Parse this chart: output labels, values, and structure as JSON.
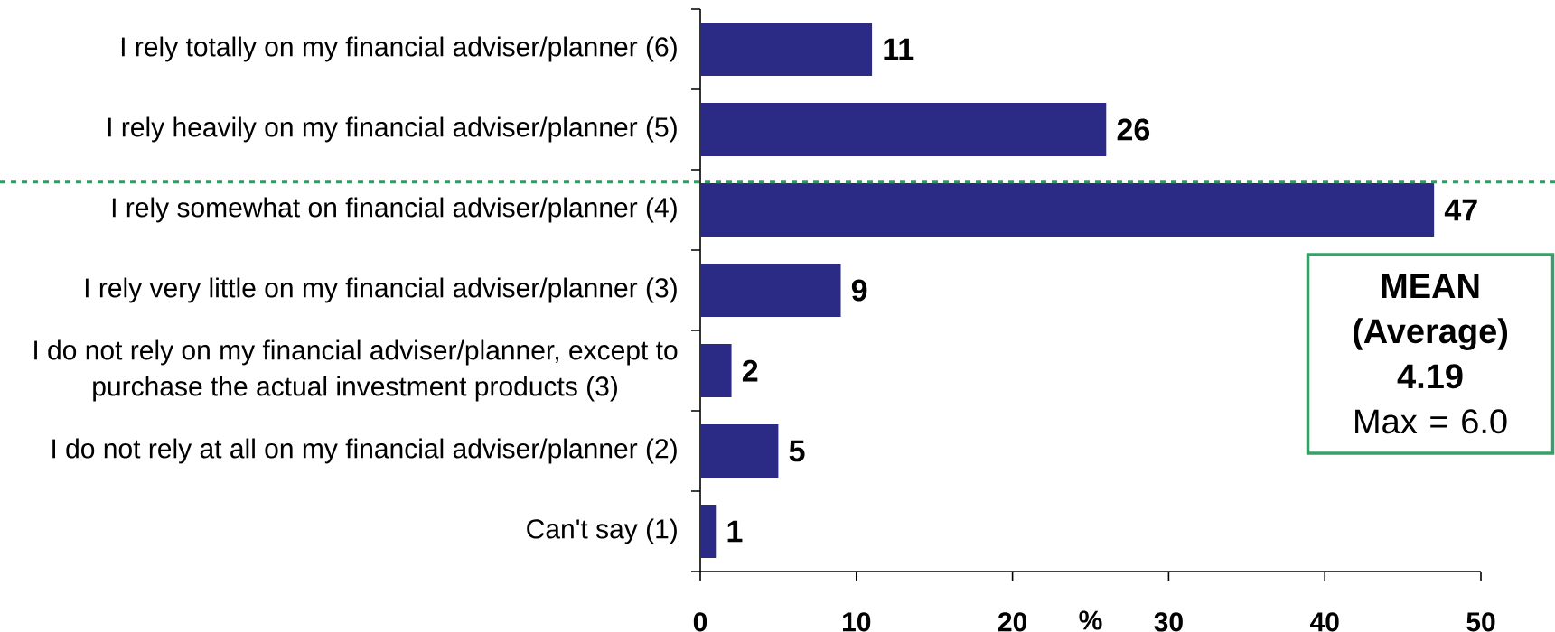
{
  "chart_data": {
    "type": "bar",
    "orientation": "horizontal",
    "categories": [
      "I rely totally on my financial adviser/planner (6)",
      "I rely heavily on my financial adviser/planner (5)",
      "I rely somewhat on financial adviser/planner (4)",
      "I rely very little on my financial adviser/planner (3)",
      "I do not rely on my financial adviser/planner, except to purchase the actual investment products (3)",
      "I do not rely at all on my financial adviser/planner (2)",
      "Can't say (1)"
    ],
    "values": [
      11,
      26,
      47,
      9,
      2,
      5,
      1
    ],
    "color": "#2b2b85",
    "xlabel": "%",
    "xlim": [
      0,
      50
    ],
    "xticks": [
      0,
      10,
      20,
      30,
      40,
      50
    ],
    "data_labels": true,
    "ref_lines": [
      {
        "axis": "y",
        "value": "I rely somewhat on financial adviser/planner (4)",
        "color": "#339966",
        "line_style": "dotted"
      }
    ],
    "annotations": [
      "MEAN (Average)",
      "4.19",
      "Max = 6.0"
    ]
  }
}
